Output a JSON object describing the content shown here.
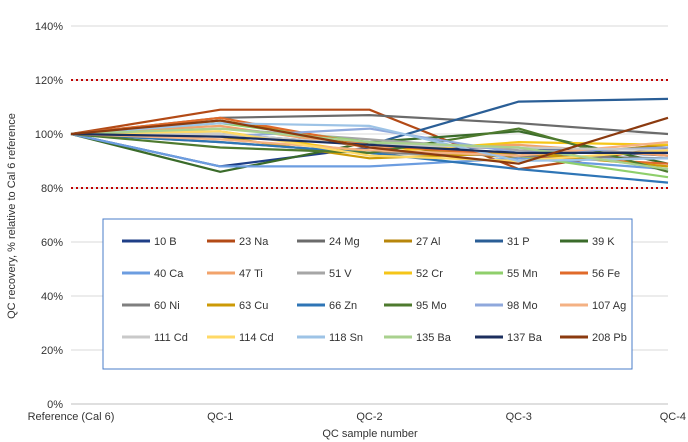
{
  "chart_data": {
    "type": "line",
    "xlabel": "QC sample number",
    "ylabel": "QC recovery, % relative to Cal 6 reference",
    "categories": [
      "Reference (Cal 6)",
      "QC-1",
      "QC-2",
      "QC-3",
      "QC-4"
    ],
    "ylim": [
      0,
      140
    ],
    "yticks": [
      "0%",
      "20%",
      "40%",
      "60%",
      "80%",
      "100%",
      "120%",
      "140%"
    ],
    "ytick_values": [
      0,
      20,
      40,
      60,
      80,
      100,
      120,
      140
    ],
    "grid": "horizontal",
    "reference_lines": [
      {
        "value": 80,
        "color": "#c00000",
        "style": "dotted"
      },
      {
        "value": 120,
        "color": "#c00000",
        "style": "dotted"
      }
    ],
    "legend_position": "bottom-center",
    "series": [
      {
        "name": "10 B",
        "color": "#1f3f87",
        "values": [
          100,
          88,
          95,
          95,
          92
        ]
      },
      {
        "name": "23 Na",
        "color": "#b34a16",
        "values": [
          100,
          109,
          109,
          87,
          95
        ]
      },
      {
        "name": "24 Mg",
        "color": "#6b6b6b",
        "values": [
          100,
          106,
          107,
          104,
          100
        ]
      },
      {
        "name": "27 Al",
        "color": "#b7860b",
        "values": [
          100,
          105,
          96,
          91,
          96
        ]
      },
      {
        "name": "31 P",
        "color": "#2a5e96",
        "values": [
          100,
          100,
          96,
          112,
          113
        ]
      },
      {
        "name": "39 K",
        "color": "#3a6b2a",
        "values": [
          100,
          86,
          97,
          101,
          89
        ]
      },
      {
        "name": "40 Ca",
        "color": "#6c9de0",
        "values": [
          100,
          88,
          88,
          91,
          87
        ]
      },
      {
        "name": "47 Ti",
        "color": "#f2a36b",
        "values": [
          100,
          103,
          95,
          96,
          92
        ]
      },
      {
        "name": "51 V",
        "color": "#a6a6a6",
        "values": [
          100,
          102,
          98,
          94,
          93
        ]
      },
      {
        "name": "52 Cr",
        "color": "#f5c518",
        "values": [
          100,
          101,
          93,
          97,
          96
        ]
      },
      {
        "name": "55 Mn",
        "color": "#8fcf6b",
        "values": [
          100,
          104,
          97,
          92,
          84
        ]
      },
      {
        "name": "56 Fe",
        "color": "#e06a2a",
        "values": [
          100,
          106,
          96,
          92,
          89
        ]
      },
      {
        "name": "60 Ni",
        "color": "#7f7f7f",
        "values": [
          100,
          97,
          93,
          92,
          91
        ]
      },
      {
        "name": "63 Cu",
        "color": "#cc9a06",
        "values": [
          100,
          99,
          91,
          93,
          88
        ]
      },
      {
        "name": "66 Zn",
        "color": "#2e75b6",
        "values": [
          100,
          97,
          93,
          87,
          82
        ]
      },
      {
        "name": "95 Mo",
        "color": "#4e7a2e",
        "values": [
          100,
          95,
          93,
          102,
          86
        ]
      },
      {
        "name": "98 Mo",
        "color": "#8fa8dc",
        "values": [
          100,
          99,
          102,
          93,
          95
        ]
      },
      {
        "name": "107 Ag",
        "color": "#f4b183",
        "values": [
          100,
          98,
          94,
          92,
          97
        ]
      },
      {
        "name": "111 Cd",
        "color": "#c9c9c9",
        "values": [
          100,
          100,
          96,
          95,
          94
        ]
      },
      {
        "name": "114 Cd",
        "color": "#ffd966",
        "values": [
          100,
          101,
          92,
          90,
          94
        ]
      },
      {
        "name": "118 Sn",
        "color": "#9dc3e6",
        "values": [
          100,
          104,
          103,
          90,
          91
        ]
      },
      {
        "name": "135 Ba",
        "color": "#a9d18e",
        "values": [
          100,
          102,
          97,
          95,
          87
        ]
      },
      {
        "name": "137 Ba",
        "color": "#1c2f5e",
        "values": [
          100,
          99,
          96,
          93,
          93
        ]
      },
      {
        "name": "208 Pb",
        "color": "#8b3a0f",
        "values": [
          100,
          105,
          95,
          89,
          106
        ]
      }
    ]
  }
}
